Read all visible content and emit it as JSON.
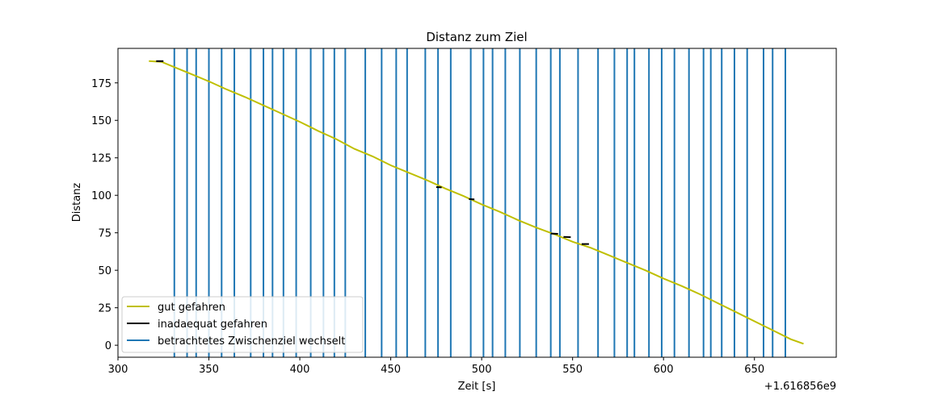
{
  "chart_data": {
    "type": "line",
    "title": "Distanz zum Ziel",
    "xlabel": "Zeit [s]",
    "ylabel": "Distanz",
    "x_offset_label": "+1.616856e9",
    "xlim": [
      300,
      695
    ],
    "ylim": [
      -8,
      198
    ],
    "grid": false,
    "legend_position": "lower-left",
    "x_ticks": [
      300,
      350,
      400,
      450,
      500,
      550,
      600,
      650
    ],
    "y_ticks": [
      0,
      25,
      50,
      75,
      100,
      125,
      150,
      175
    ],
    "colors": {
      "good": "#bfbf00",
      "inadequate": "#000000",
      "switch": "#1f77b4",
      "axes": "#000000"
    },
    "series": [
      {
        "name": "gut gefahren",
        "points": [
          [
            317,
            189.5
          ],
          [
            324,
            189
          ],
          [
            330,
            186
          ],
          [
            340,
            181
          ],
          [
            350,
            176
          ],
          [
            360,
            170.5
          ],
          [
            370,
            165.5
          ],
          [
            380,
            160
          ],
          [
            390,
            154.5
          ],
          [
            400,
            149
          ],
          [
            410,
            143
          ],
          [
            420,
            137.5
          ],
          [
            430,
            131
          ],
          [
            440,
            126
          ],
          [
            450,
            120
          ],
          [
            460,
            115
          ],
          [
            470,
            110
          ],
          [
            480,
            104.5
          ],
          [
            490,
            99.5
          ],
          [
            500,
            94
          ],
          [
            510,
            89
          ],
          [
            520,
            83.5
          ],
          [
            530,
            78.5
          ],
          [
            540,
            74
          ],
          [
            550,
            69
          ],
          [
            560,
            65
          ],
          [
            570,
            60
          ],
          [
            580,
            55
          ],
          [
            590,
            50
          ],
          [
            600,
            44.5
          ],
          [
            610,
            39.5
          ],
          [
            620,
            34
          ],
          [
            630,
            28
          ],
          [
            640,
            22
          ],
          [
            650,
            16
          ],
          [
            660,
            10
          ],
          [
            670,
            4
          ],
          [
            677,
            1
          ]
        ]
      },
      {
        "name": "inadaequat gefahren",
        "segments": [
          [
            [
              321,
              189.5
            ],
            [
              325,
              189.5
            ]
          ],
          [
            [
              475,
              105.5
            ],
            [
              478,
              105.3
            ]
          ],
          [
            [
              493,
              97.5
            ],
            [
              496,
              97.3
            ]
          ],
          [
            [
              538,
              74.5
            ],
            [
              542,
              74.3
            ]
          ],
          [
            [
              545,
              72.3
            ],
            [
              549,
              72.1
            ]
          ],
          [
            [
              555,
              67.5
            ],
            [
              559,
              67.5
            ]
          ]
        ]
      },
      {
        "name": "betrachtetes Zwischenziel wechselt",
        "x": [
          331,
          338,
          343,
          350,
          357,
          364,
          373,
          380,
          385,
          391,
          398,
          406,
          413,
          419,
          425,
          436,
          445,
          453,
          459,
          469,
          476,
          483,
          494,
          501,
          506,
          513,
          521,
          530,
          538,
          543,
          553,
          564,
          573,
          580,
          584,
          592,
          599,
          606,
          614,
          622,
          626,
          632,
          639,
          646,
          655,
          660,
          667
        ]
      }
    ]
  }
}
